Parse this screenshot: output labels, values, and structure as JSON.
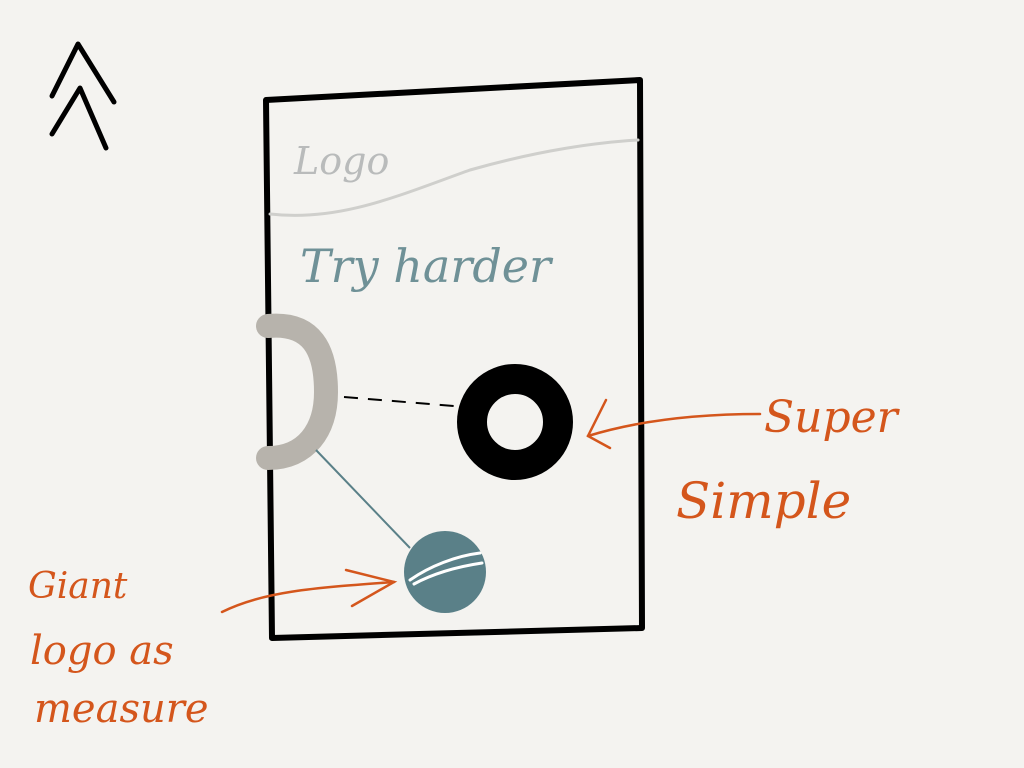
{
  "labels": {
    "logo": "Logo",
    "headline": "Try harder",
    "callout_right": [
      "Super",
      "Simple"
    ],
    "callout_left": [
      "Giant",
      "logo as",
      "measure"
    ]
  },
  "icons": {
    "top_left": "double-chevron-up-icon"
  },
  "colors": {
    "background": "#f4f3f0",
    "ink": "#000000",
    "logo_sketch": "#b9bbbb",
    "teal": "#5a8088",
    "teal_text": "#6f9197",
    "grey_ring": "#b7b3ac",
    "annotation": "#d4561c"
  }
}
